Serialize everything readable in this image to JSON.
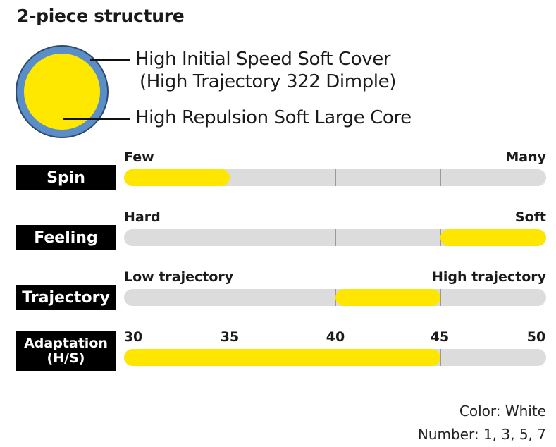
{
  "title": "2-piece structure",
  "ball": {
    "cover_text_line1": "High Initial Speed Soft Cover",
    "cover_text_line2": "(High Trajectory 322 Dimple)",
    "core_text": "High Repulsion Soft Large Core",
    "cover_color": "#5b8dc9",
    "core_color": "#ffe800"
  },
  "rows": {
    "spin": {
      "label": "Spin",
      "left_text": "Few",
      "right_text": "Many",
      "fill_start": 0,
      "fill_end": 1
    },
    "feeling": {
      "label": "Feeling",
      "left_text": "Hard",
      "right_text": "Soft",
      "fill_start": 3,
      "fill_end": 4
    },
    "trajectory": {
      "label": "Trajectory",
      "left_text": "Low trajectory",
      "right_text": "High trajectory",
      "fill_start": 2,
      "fill_end": 3
    },
    "adaptation": {
      "label_line1": "Adaptation",
      "label_line2": "(H/S)",
      "scale": [
        "30",
        "35",
        "40",
        "45",
        "50"
      ],
      "fill_start": 0,
      "fill_end": 3
    }
  },
  "colors": {
    "fill": "#ffe600",
    "track": "#dcdcdc",
    "label_bg": "#000000"
  },
  "footer": {
    "color_text": "Color: White",
    "number_text": "Number: 1, 3, 5, 7"
  }
}
